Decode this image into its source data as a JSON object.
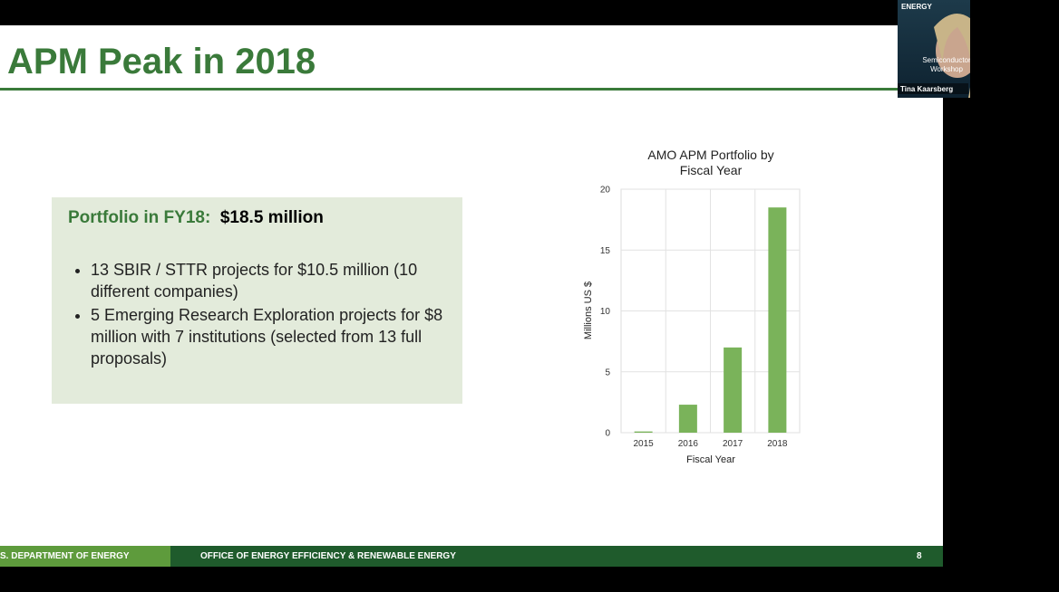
{
  "slide": {
    "title": "APM Peak in 2018",
    "box": {
      "heading_label": "Portfolio in FY18:",
      "heading_value": "$18.5 million",
      "bullets": [
        "13 SBIR / STTR projects for $10.5 million (10 different companies)",
        "5 Emerging Research Exploration projects for $8 million with 7 institutions (selected from 13 full proposals)"
      ]
    },
    "footer": {
      "left": "S. DEPARTMENT OF ENERGY",
      "center": "OFFICE OF ENERGY EFFICIENCY & RENEWABLE ENERGY",
      "page": "8"
    }
  },
  "video": {
    "logo": "ENERGY",
    "event_lines": [
      "Semiconductor",
      "Workshop"
    ],
    "speaker": "Tina Kaarsberg"
  },
  "chart_data": {
    "type": "bar",
    "title": [
      "AMO APM Portfolio by",
      "Fiscal Year"
    ],
    "categories": [
      "2015",
      "2016",
      "2017",
      "2018"
    ],
    "values": [
      0.1,
      2.3,
      7.0,
      18.5
    ],
    "color": "#7ab35a",
    "x_label": "Fiscal Year",
    "y_label": "Millions US $",
    "ylim": [
      0,
      20
    ],
    "yticks": [
      0,
      5,
      10,
      15,
      20
    ],
    "grid": true
  }
}
